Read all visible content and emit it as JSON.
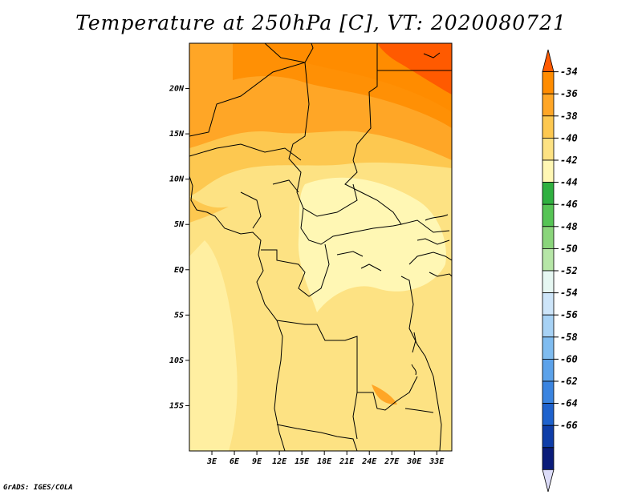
{
  "title": "Temperature at 250hPa [C], VT: 2020080721",
  "credit": "GrADS: IGES/COLA",
  "map": {
    "lat_labels": [
      "20N",
      "15N",
      "10N",
      "5N",
      "EQ",
      "5S",
      "10S",
      "15S"
    ],
    "lat_values": [
      20,
      15,
      10,
      5,
      0,
      -5,
      -10,
      -15
    ],
    "lon_labels": [
      "3E",
      "6E",
      "9E",
      "12E",
      "15E",
      "18E",
      "21E",
      "24E",
      "27E",
      "30E",
      "33E"
    ],
    "lon_values": [
      3,
      6,
      9,
      12,
      15,
      18,
      21,
      24,
      27,
      30,
      33
    ],
    "lon_range": [
      0,
      35
    ],
    "lat_range": [
      -20,
      25
    ]
  },
  "colorbar": {
    "labels": [
      "-34",
      "-36",
      "-38",
      "-40",
      "-42",
      "-44",
      "-46",
      "-48",
      "-50",
      "-52",
      "-54",
      "-56",
      "-58",
      "-60",
      "-62",
      "-64",
      "-66"
    ],
    "colors": [
      "#ff5a00",
      "#ff8c00",
      "#ffa626",
      "#fdc850",
      "#fde283",
      "#fff7b4",
      "#2fb040",
      "#56c455",
      "#8ad57b",
      "#b6e6a7",
      "#e6f7f2",
      "#cde5f9",
      "#a7d2f5",
      "#7fbcf0",
      "#5ca2ea",
      "#3a84e0",
      "#1e62cd",
      "#0e3da8",
      "#0a1c7a",
      "#dcdcf8"
    ]
  }
}
